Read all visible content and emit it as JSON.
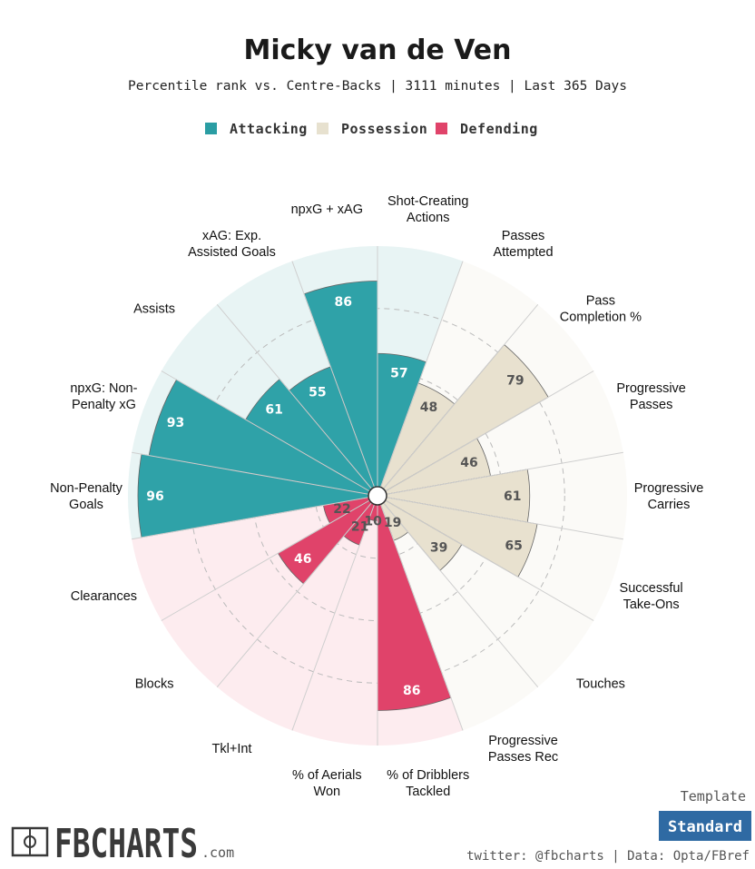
{
  "header": {
    "title": "Micky van de Ven",
    "subtitle": "Percentile rank vs. Centre-Backs | 3111 minutes | Last 365 Days"
  },
  "legend": [
    {
      "label": "Attacking",
      "color": "#2a9da3"
    },
    {
      "label": "Possession",
      "color": "#e7e1cf"
    },
    {
      "label": "Defending",
      "color": "#e0436a"
    }
  ],
  "colors": {
    "Attacking": {
      "fill": "#2fa2a8",
      "bg": "#e8f4f4",
      "text": "#ffffff"
    },
    "Possession": {
      "fill": "#e8e1cf",
      "bg": "#fbfaf7",
      "text": "#555555"
    },
    "Defending": {
      "fill": "#e0436a",
      "bg": "#fdecef",
      "text": "#ffffff",
      "text_light": "#555555"
    }
  },
  "chart_data": {
    "type": "polar-bar",
    "r_range": [
      0,
      100
    ],
    "gridlines": [
      25,
      50,
      75
    ],
    "categories": [
      {
        "label": [
          "Shot-Creating",
          "Actions"
        ],
        "group": "Attacking",
        "value": 57
      },
      {
        "label": [
          "Passes",
          "Attempted"
        ],
        "group": "Possession",
        "value": 48
      },
      {
        "label": [
          "Pass",
          "Completion %"
        ],
        "group": "Possession",
        "value": 79
      },
      {
        "label": [
          "Progressive",
          "Passes"
        ],
        "group": "Possession",
        "value": 46
      },
      {
        "label": [
          "Progressive",
          "Carries"
        ],
        "group": "Possession",
        "value": 61
      },
      {
        "label": [
          "Successful",
          "Take-Ons"
        ],
        "group": "Possession",
        "value": 65
      },
      {
        "label": [
          "Touches"
        ],
        "group": "Possession",
        "value": 39
      },
      {
        "label": [
          "Progressive",
          "Passes Rec"
        ],
        "group": "Possession",
        "value": 19
      },
      {
        "label": [
          "% of Dribblers",
          "Tackled"
        ],
        "group": "Defending",
        "value": 86
      },
      {
        "label": [
          "% of Aerials",
          "Won"
        ],
        "group": "Defending",
        "value": 10
      },
      {
        "label": [
          "Tkl+Int"
        ],
        "group": "Defending",
        "value": 21
      },
      {
        "label": [
          "Blocks"
        ],
        "group": "Defending",
        "value": 46
      },
      {
        "label": [
          "Clearances"
        ],
        "group": "Defending",
        "value": 22
      },
      {
        "label": [
          "Non-Penalty",
          "Goals"
        ],
        "group": "Attacking",
        "value": 96
      },
      {
        "label": [
          "npxG: Non-",
          "Penalty xG"
        ],
        "group": "Attacking",
        "value": 93
      },
      {
        "label": [
          "Assists"
        ],
        "group": "Attacking",
        "value": 61
      },
      {
        "label": [
          "xAG: Exp.",
          "Assisted Goals"
        ],
        "group": "Attacking",
        "value": 55
      },
      {
        "label": [
          "npxG + xAG"
        ],
        "group": "Attacking",
        "value": 86
      }
    ]
  },
  "footer": {
    "logo_text": "FBCHARTS",
    "logo_suffix": ".com",
    "template_label": "Template",
    "template_value": "Standard",
    "credit": "twitter: @fbcharts | Data: Opta/FBref"
  }
}
